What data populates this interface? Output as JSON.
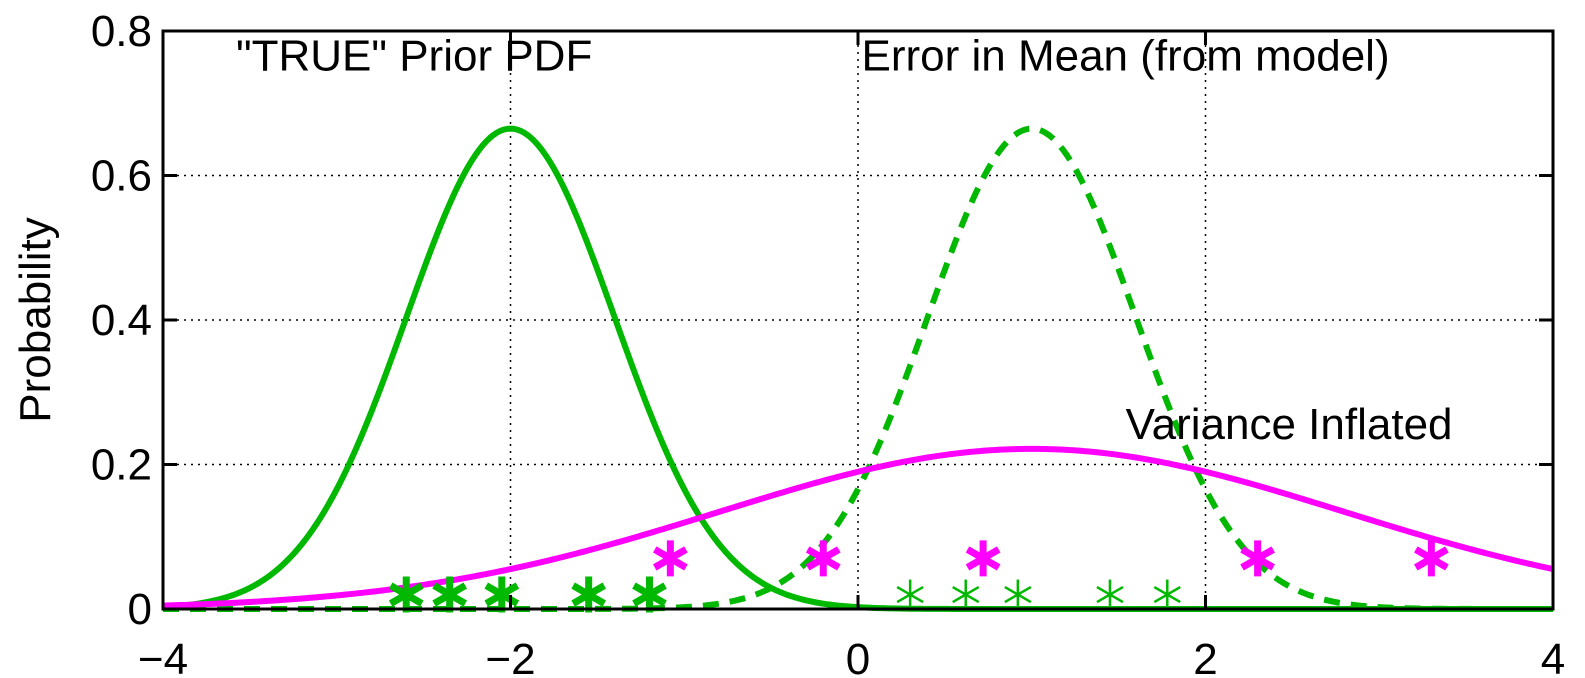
{
  "chart_data": {
    "type": "line",
    "xlim": [
      -4,
      4
    ],
    "ylim": [
      0,
      0.8
    ],
    "grid": "dotted",
    "xticks": [
      "−4",
      "−2",
      "0",
      "2",
      "4"
    ],
    "xtick_values": [
      -4,
      -2,
      0,
      2,
      4
    ],
    "yticks": [
      "0",
      "0.2",
      "0.4",
      "0.6",
      "0.8"
    ],
    "ytick_values": [
      0,
      0.2,
      0.4,
      0.6,
      0.8
    ],
    "ylabel": "Probability",
    "xlabel": "",
    "annotations": [
      {
        "text": "\"TRUE\" Prior PDF",
        "x": -3.58,
        "y": 0.745
      },
      {
        "text": "Error in Mean (from model)",
        "x": 0.02,
        "y": 0.745
      },
      {
        "text": "Variance Inflated",
        "x": 1.54,
        "y": 0.235
      }
    ],
    "series": [
      {
        "mean": -2,
        "sd": 0.6,
        "color": "#00b800",
        "style": "solid"
      },
      {
        "mean": 1,
        "sd": 0.6,
        "color": "#00b800",
        "style": "dashed"
      },
      {
        "mean": 1,
        "sd": 1.8,
        "color": "#ff00ff",
        "style": "solid"
      }
    ],
    "markers": [
      {
        "set": "green-bold",
        "color": "#00b800",
        "y": 0.02,
        "x": [
          -2.6,
          -2.35,
          -2.05,
          -1.55,
          -1.2
        ]
      },
      {
        "set": "green-thin",
        "color": "#00b800",
        "y": 0.02,
        "x": [
          0.3,
          0.62,
          0.92,
          1.45,
          1.78
        ]
      },
      {
        "set": "magenta",
        "color": "#ff00ff",
        "y": 0.07,
        "x": [
          -1.08,
          -0.2,
          0.72,
          2.3,
          3.3
        ]
      }
    ]
  }
}
